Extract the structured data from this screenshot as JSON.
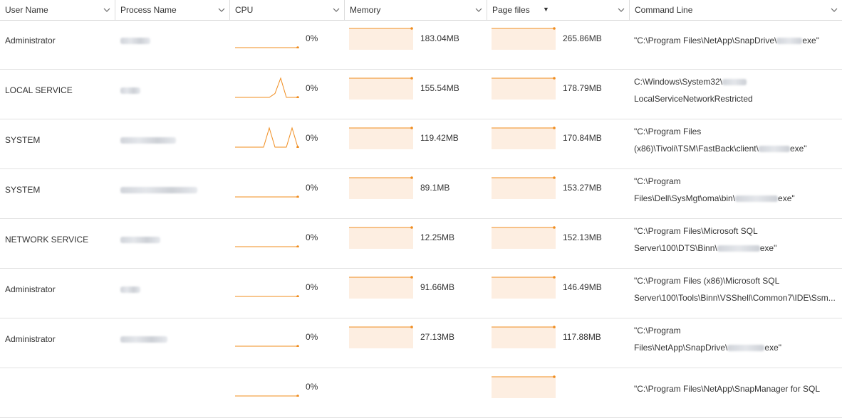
{
  "columns": [
    {
      "label": "User Name",
      "sorted": false
    },
    {
      "label": "Process Name",
      "sorted": false
    },
    {
      "label": "CPU",
      "sorted": false
    },
    {
      "label": "Memory",
      "sorted": false
    },
    {
      "label": "Page files",
      "sorted": true,
      "sort_glyph": "▼"
    },
    {
      "label": "Command Line",
      "sorted": false
    }
  ],
  "colors": {
    "accent": "#f08c1e",
    "fill": "#fdeee1",
    "grid": "#e2e2e2"
  },
  "rows": [
    {
      "user": "Administrator",
      "cpu": "0%",
      "memory": "183.04MB",
      "pagefiles": "265.86MB",
      "cmd_lines": [
        {
          "parts": [
            "\"C:\\Program Files\\NetApp\\SnapDrive\\",
            "exe\""
          ]
        }
      ]
    },
    {
      "user": "LOCAL SERVICE",
      "cpu": "0%",
      "memory": "155.54MB",
      "pagefiles": "178.79MB",
      "cmd_lines": [
        {
          "parts": [
            "C:\\Windows\\System32\\",
            ""
          ]
        },
        {
          "parts": [
            "LocalServiceNetworkRestricted"
          ]
        }
      ]
    },
    {
      "user": "SYSTEM",
      "cpu": "0%",
      "memory": "119.42MB",
      "pagefiles": "170.84MB",
      "cmd_lines": [
        {
          "parts": [
            "\"C:\\Program Files"
          ]
        },
        {
          "parts": [
            "(x86)\\Tivoli\\TSM\\FastBack\\client\\",
            "exe\""
          ]
        }
      ]
    },
    {
      "user": "SYSTEM",
      "cpu": "0%",
      "memory": "89.1MB",
      "pagefiles": "153.27MB",
      "cmd_lines": [
        {
          "parts": [
            "\"C:\\Program"
          ]
        },
        {
          "parts": [
            "Files\\Dell\\SysMgt\\oma\\bin\\",
            "exe\""
          ]
        }
      ]
    },
    {
      "user": "NETWORK SERVICE",
      "cpu": "0%",
      "memory": "12.25MB",
      "pagefiles": "152.13MB",
      "cmd_lines": [
        {
          "parts": [
            "\"C:\\Program Files\\Microsoft SQL"
          ]
        },
        {
          "parts": [
            "Server\\100\\DTS\\Binn\\",
            "exe\""
          ]
        }
      ]
    },
    {
      "user": "Administrator",
      "cpu": "0%",
      "memory": "91.66MB",
      "pagefiles": "146.49MB",
      "cmd_lines": [
        {
          "parts": [
            "\"C:\\Program Files (x86)\\Microsoft SQL"
          ]
        },
        {
          "parts": [
            "Server\\100\\Tools\\Binn\\VSShell\\Common7\\IDE\\Ssm..."
          ]
        }
      ]
    },
    {
      "user": "Administrator",
      "cpu": "0%",
      "memory": "27.13MB",
      "pagefiles": "117.88MB",
      "cmd_lines": [
        {
          "parts": [
            "\"C:\\Program"
          ]
        },
        {
          "parts": [
            "Files\\NetApp\\SnapDrive\\",
            "exe\""
          ]
        }
      ]
    },
    {
      "user": "",
      "cpu": "0%",
      "memory": "",
      "pagefiles": "",
      "cmd_lines": [
        {
          "parts": [
            "\"C:\\Program Files\\NetApp\\SnapManager for SQL"
          ]
        }
      ]
    }
  ],
  "cpu_history": [
    [
      0,
      0,
      0,
      0,
      0,
      0,
      0,
      0,
      0,
      0,
      0,
      0
    ],
    [
      0,
      0,
      0,
      0,
      0,
      0,
      0,
      0.2,
      1,
      0,
      0,
      0
    ],
    [
      0,
      0,
      0,
      0,
      0,
      0,
      1,
      0,
      0,
      0,
      1,
      0
    ],
    [
      0,
      0,
      0,
      0,
      0,
      0,
      0,
      0,
      0,
      0,
      0,
      0
    ],
    [
      0,
      0,
      0,
      0,
      0,
      0,
      0,
      0,
      0,
      0,
      0,
      0
    ],
    [
      0,
      0,
      0,
      0,
      0,
      0,
      0,
      0,
      0,
      0,
      0,
      0
    ],
    [
      0,
      0,
      0,
      0,
      0,
      0,
      0,
      0,
      0,
      0,
      0,
      0
    ],
    [
      0,
      0,
      0,
      0,
      0,
      0,
      0,
      0,
      0,
      0,
      0,
      0
    ]
  ]
}
